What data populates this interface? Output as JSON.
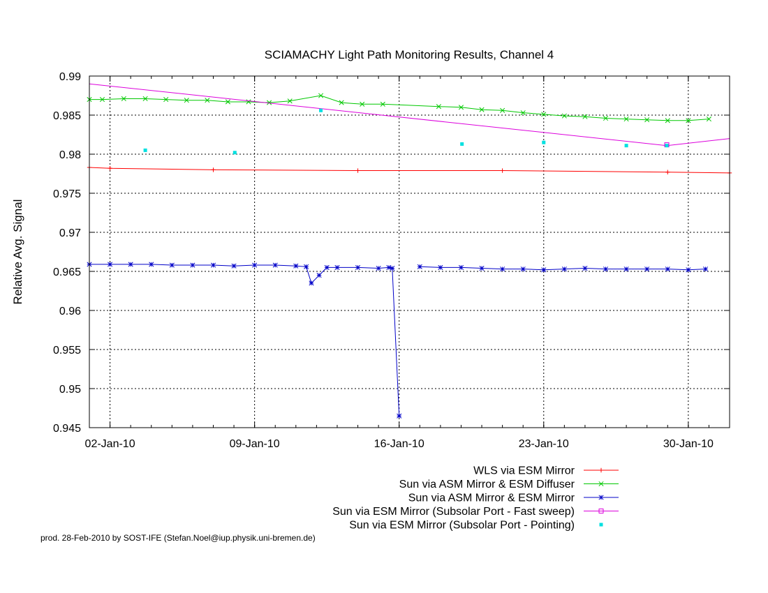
{
  "chart_data": {
    "type": "line",
    "title": "SCIAMACHY Light Path Monitoring Results, Channel 4",
    "xlabel": "",
    "ylabel": "Relative Avg. Signal",
    "x_axis": {
      "type": "date",
      "range": [
        "2010-01-01T00:00",
        "2010-02-01T00:00"
      ],
      "ticks": [
        {
          "date": "2010-01-02",
          "label": "02-Jan-10"
        },
        {
          "date": "2010-01-09",
          "label": "09-Jan-10"
        },
        {
          "date": "2010-01-16",
          "label": "16-Jan-10"
        },
        {
          "date": "2010-01-23",
          "label": "23-Jan-10"
        },
        {
          "date": "2010-01-30",
          "label": "30-Jan-10"
        }
      ]
    },
    "y_axis": {
      "range": [
        0.945,
        0.99
      ],
      "ticks": [
        0.945,
        0.95,
        0.955,
        0.96,
        0.965,
        0.97,
        0.975,
        0.98,
        0.985,
        0.99
      ],
      "tick_labels": [
        "0.945",
        "0.95",
        "0.955",
        "0.96",
        "0.965",
        "0.97",
        "0.975",
        "0.98",
        "0.985",
        "0.99"
      ]
    },
    "grid": true,
    "legend_position": "bottom-right",
    "series": [
      {
        "name": "WLS via ESM Mirror",
        "color": "#ff0000",
        "style": "line+plus",
        "points": [
          [
            "2010-01-01T00:00",
            0.9783
          ],
          [
            "2010-01-02T00:00",
            0.9782
          ],
          [
            "2010-01-07T00:00",
            0.978
          ],
          [
            "2010-01-14T00:00",
            0.9779
          ],
          [
            "2010-01-21T00:00",
            0.9779
          ],
          [
            "2010-01-29T00:00",
            0.9777
          ],
          [
            "2010-02-01T00:00",
            0.9776
          ]
        ]
      },
      {
        "name": "Sun via ASM Mirror & ESM Diffuser",
        "color": "#00c800",
        "style": "line+cross",
        "points": [
          [
            "2010-01-01T00:00",
            0.987
          ],
          [
            "2010-01-01T15:00",
            0.987
          ],
          [
            "2010-01-02T16:00",
            0.9871
          ],
          [
            "2010-01-03T17:00",
            0.9871
          ],
          [
            "2010-01-04T17:00",
            0.987
          ],
          [
            "2010-01-05T17:00",
            0.9869
          ],
          [
            "2010-01-06T17:00",
            0.9869
          ],
          [
            "2010-01-07T17:00",
            0.9867
          ],
          [
            "2010-01-08T17:00",
            0.9867
          ],
          [
            "2010-01-09T17:00",
            0.9866
          ],
          [
            "2010-01-10T17:00",
            0.9868
          ],
          [
            "2010-01-12T05:00",
            0.9875
          ],
          [
            "2010-01-13T05:00",
            0.9866
          ],
          [
            "2010-01-14T05:00",
            0.9864
          ],
          [
            "2010-01-15T05:00",
            0.9864
          ],
          [
            "2010-01-17T22:00",
            0.9861
          ],
          [
            "2010-01-19T00:00",
            0.986
          ],
          [
            "2010-01-20T00:00",
            0.9857
          ],
          [
            "2010-01-21T00:00",
            0.9856
          ],
          [
            "2010-01-22T00:00",
            0.9853
          ],
          [
            "2010-01-23T00:00",
            0.9851
          ],
          [
            "2010-01-24T00:00",
            0.9849
          ],
          [
            "2010-01-25T00:00",
            0.9848
          ],
          [
            "2010-01-26T00:00",
            0.9846
          ],
          [
            "2010-01-27T00:00",
            0.9845
          ],
          [
            "2010-01-28T00:00",
            0.9844
          ],
          [
            "2010-01-29T00:00",
            0.9843
          ],
          [
            "2010-01-30T00:00",
            0.9843
          ],
          [
            "2010-01-31T00:00",
            0.9845
          ]
        ]
      },
      {
        "name": "Sun via ASM Mirror & ESM Mirror",
        "color": "#0000c8",
        "style": "line+star",
        "points": [
          [
            "2010-01-01T00:00",
            0.9659
          ],
          [
            "2010-01-02T00:00",
            0.9659
          ],
          [
            "2010-01-03T00:00",
            0.9659
          ],
          [
            "2010-01-04T00:00",
            0.9659
          ],
          [
            "2010-01-05T00:00",
            0.9658
          ],
          [
            "2010-01-06T00:00",
            0.9658
          ],
          [
            "2010-01-07T00:00",
            0.9658
          ],
          [
            "2010-01-08T00:00",
            0.9657
          ],
          [
            "2010-01-09T00:00",
            0.9658
          ],
          [
            "2010-01-10T00:00",
            0.9658
          ],
          [
            "2010-01-11T00:00",
            0.9657
          ],
          [
            "2010-01-11T12:00",
            0.9656
          ],
          [
            "2010-01-11T18:00",
            0.9635
          ],
          [
            "2010-01-12T03:00",
            0.9645
          ],
          [
            "2010-01-12T12:00",
            0.9655
          ],
          [
            "2010-01-13T00:00",
            0.9655
          ],
          [
            "2010-01-14T00:00",
            0.9655
          ],
          [
            "2010-01-15T00:00",
            0.9654
          ],
          [
            "2010-01-15T12:00",
            0.9655
          ],
          [
            "2010-01-15T16:00",
            0.9654
          ],
          [
            "2010-01-16T00:00",
            0.9465
          ],
          [
            null,
            null
          ],
          [
            "2010-01-17T00:00",
            0.9656
          ],
          [
            "2010-01-18T00:00",
            0.9655
          ],
          [
            "2010-01-19T00:00",
            0.9655
          ],
          [
            "2010-01-20T00:00",
            0.9654
          ],
          [
            "2010-01-21T00:00",
            0.9653
          ],
          [
            "2010-01-22T00:00",
            0.9653
          ],
          [
            "2010-01-23T00:00",
            0.9652
          ],
          [
            "2010-01-24T00:00",
            0.9653
          ],
          [
            "2010-01-25T00:00",
            0.9654
          ],
          [
            "2010-01-26T00:00",
            0.9653
          ],
          [
            "2010-01-27T00:00",
            0.9653
          ],
          [
            "2010-01-28T00:00",
            0.9653
          ],
          [
            "2010-01-29T00:00",
            0.9653
          ],
          [
            "2010-01-30T00:00",
            0.9652
          ],
          [
            "2010-01-30T20:00",
            0.9653
          ]
        ]
      },
      {
        "name": "Sun via ESM Mirror (Subsolar Port - Fast sweep)",
        "color": "#dc00dc",
        "style": "line",
        "points": [
          [
            "2010-01-01T00:00",
            0.989
          ],
          [
            "2010-01-28T23:00",
            0.9811
          ],
          [
            "2010-02-01T00:00",
            0.982
          ]
        ],
        "markers": [
          [
            "2010-01-28T23:00",
            0.9812
          ]
        ]
      },
      {
        "name": "Sun via ESM Mirror (Subsolar Port - Pointing)",
        "color": "#00e0e0",
        "style": "points",
        "points": [
          [
            "2010-01-03T17:00",
            0.9805
          ],
          [
            "2010-01-08T01:00",
            0.9802
          ],
          [
            "2010-01-12T05:00",
            0.9856
          ],
          [
            "2010-01-19T01:00",
            0.9813
          ],
          [
            "2010-01-23T00:00",
            0.9815
          ],
          [
            "2010-01-27T00:00",
            0.9811
          ],
          [
            "2010-01-28T23:00",
            0.9811
          ]
        ]
      }
    ],
    "footer": "prod. 28-Feb-2010 by SOST-IFE (Stefan.Noel@iup.physik.uni-bremen.de)"
  }
}
